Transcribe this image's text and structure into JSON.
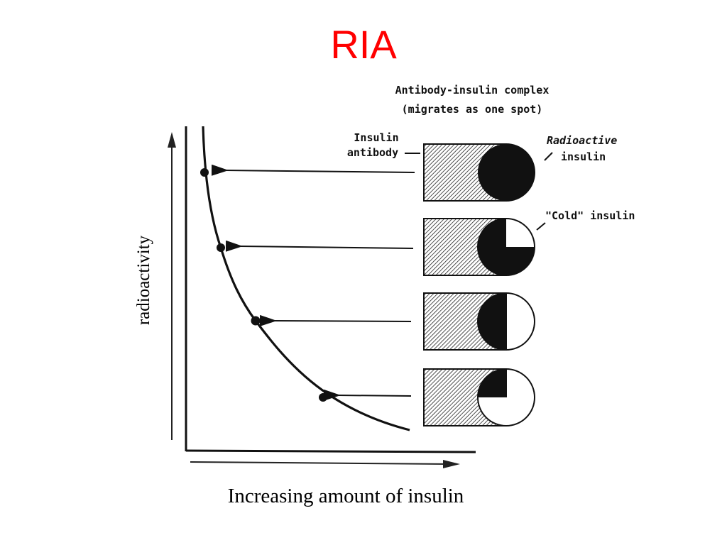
{
  "slide": {
    "title": "RIA",
    "y_axis_label": "radioactivity",
    "x_axis_label": "Increasing amount of insulin"
  },
  "diagram": {
    "complex_heading_line1": "Antibody-insulin complex",
    "complex_heading_line2": "(migrates as one spot)",
    "antibody_label_line1": "Insulin",
    "antibody_label_line2": "antibody",
    "radioactive_label_line1": "Radioactive",
    "radioactive_label_line2": "insulin",
    "cold_label": "\"Cold\" insulin"
  },
  "colors": {
    "title": "#ff0000",
    "ink": "#111111",
    "background": "#ffffff"
  }
}
